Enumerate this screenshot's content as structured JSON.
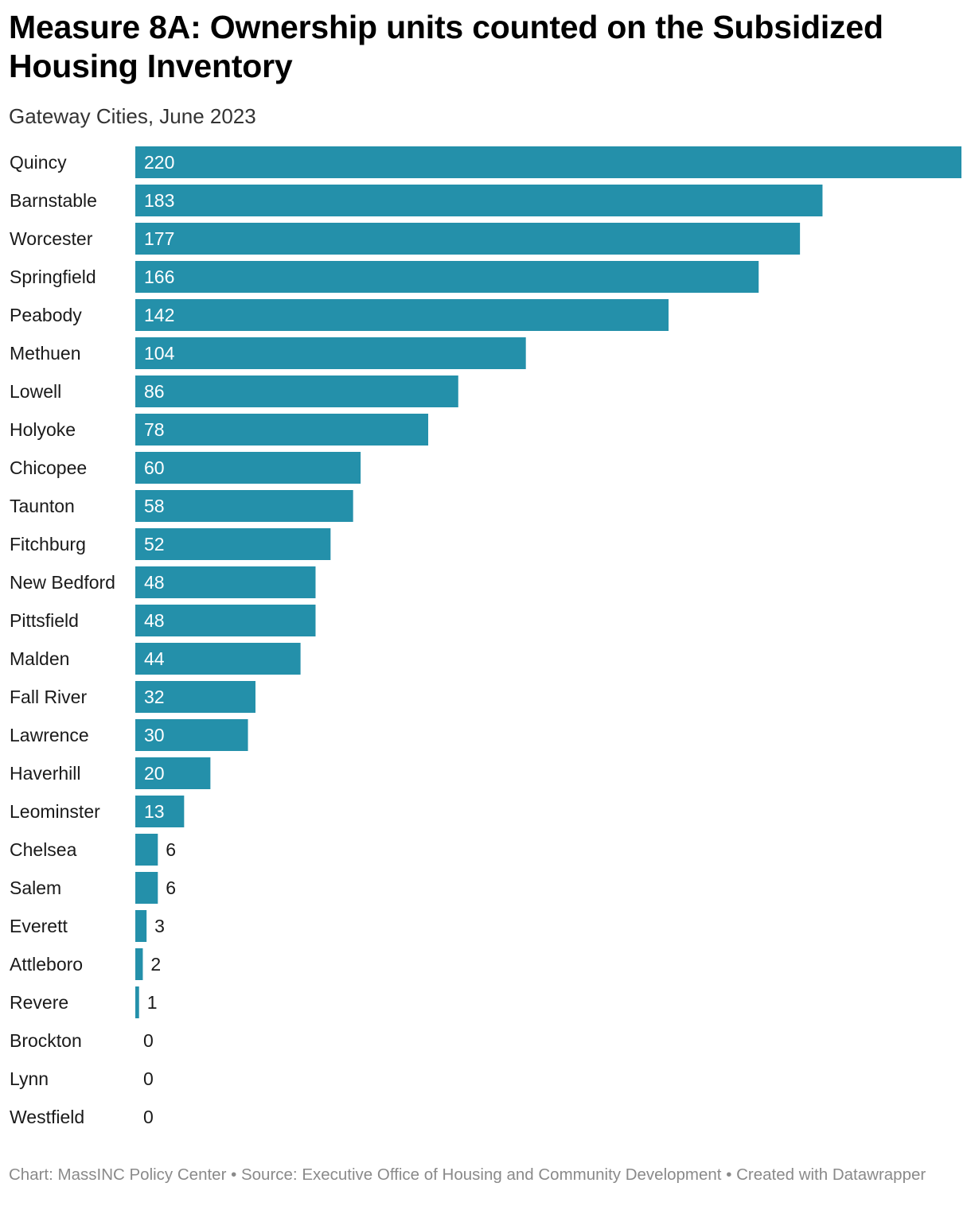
{
  "chart_data": {
    "type": "bar",
    "orientation": "horizontal",
    "title": "Measure 8A: Ownership units counted on the Subsidized Housing Inventory",
    "subtitle": "Gateway Cities, June 2023",
    "categories": [
      "Quincy",
      "Barnstable",
      "Worcester",
      "Springfield",
      "Peabody",
      "Methuen",
      "Lowell",
      "Holyoke",
      "Chicopee",
      "Taunton",
      "Fitchburg",
      "New Bedford",
      "Pittsfield",
      "Malden",
      "Fall River",
      "Lawrence",
      "Haverhill",
      "Leominster",
      "Chelsea",
      "Salem",
      "Everett",
      "Attleboro",
      "Revere",
      "Brockton",
      "Lynn",
      "Westfield"
    ],
    "values": [
      220,
      183,
      177,
      166,
      142,
      104,
      86,
      78,
      60,
      58,
      52,
      48,
      48,
      44,
      32,
      30,
      20,
      13,
      6,
      6,
      3,
      2,
      1,
      0,
      0,
      0
    ],
    "xlim": [
      0,
      220
    ],
    "grid": false,
    "legend": "none",
    "bar_color": "#2490aa",
    "footer": "Chart: MassINC Policy Center • Source: Executive Office of Housing and Community Development • Created with Datawrapper"
  }
}
